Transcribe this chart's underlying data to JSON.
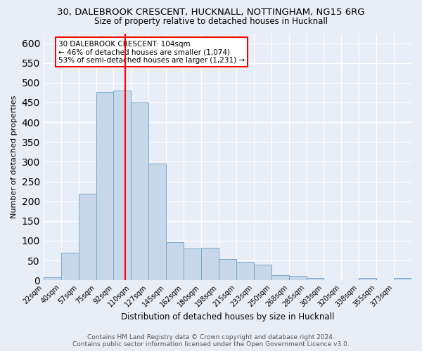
{
  "title_line1": "30, DALEBROOK CRESCENT, HUCKNALL, NOTTINGHAM, NG15 6RG",
  "title_line2": "Size of property relative to detached houses in Hucknall",
  "xlabel": "Distribution of detached houses by size in Hucknall",
  "ylabel": "Number of detached properties",
  "footer": "Contains HM Land Registry data © Crown copyright and database right 2024.\nContains public sector information licensed under the Open Government Licence v3.0.",
  "bin_labels": [
    "22sqm",
    "40sqm",
    "57sqm",
    "75sqm",
    "92sqm",
    "110sqm",
    "127sqm",
    "145sqm",
    "162sqm",
    "180sqm",
    "198sqm",
    "215sqm",
    "233sqm",
    "250sqm",
    "268sqm",
    "285sqm",
    "303sqm",
    "320sqm",
    "338sqm",
    "355sqm",
    "373sqm"
  ],
  "bar_heights": [
    7,
    70,
    219,
    477,
    480,
    450,
    295,
    97,
    80,
    82,
    54,
    46,
    40,
    12,
    11,
    5,
    0,
    0,
    5,
    0,
    5
  ],
  "bar_color": "#c8d8eb",
  "bar_edge_color": "#7aaac8",
  "property_size_idx": 4.7,
  "vline_color": "red",
  "annotation_text": "30 DALEBROOK CRESCENT: 104sqm\n← 46% of detached houses are smaller (1,074)\n53% of semi-detached houses are larger (1,231) →",
  "annotation_box_color": "white",
  "annotation_box_edge_color": "red",
  "ylim": [
    0,
    625
  ],
  "yticks": [
    0,
    50,
    100,
    150,
    200,
    250,
    300,
    350,
    400,
    450,
    500,
    550,
    600
  ],
  "bg_color": "#e8eef8",
  "plot_bg_color": "#e8eef8",
  "grid_color": "white",
  "title1_fontsize": 9.5,
  "title2_fontsize": 8.5,
  "ylabel_fontsize": 8,
  "xlabel_fontsize": 8.5,
  "tick_fontsize": 7,
  "footer_fontsize": 6.5,
  "annotation_fontsize": 7.5
}
